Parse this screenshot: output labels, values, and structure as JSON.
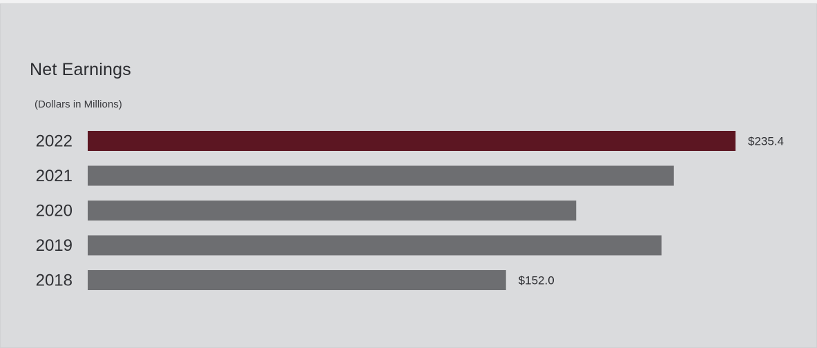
{
  "colors": {
    "background": "#dadbdd",
    "highlight_bar": "#5c1622",
    "default_bar": "#6d6e71"
  },
  "chart_data": {
    "type": "bar",
    "orientation": "horizontal",
    "title": "Net Earnings",
    "subtitle": "(Dollars in Millions)",
    "categories": [
      "2022",
      "2021",
      "2020",
      "2019",
      "2018"
    ],
    "values": [
      235.4,
      213.0,
      177.5,
      208.5,
      152.0
    ],
    "data_labels": [
      "$235.4",
      "",
      "",
      "",
      "$152.0"
    ],
    "highlight_category": "2022",
    "xlim": [
      0,
      235.4
    ],
    "grid": false,
    "legend": "none"
  }
}
